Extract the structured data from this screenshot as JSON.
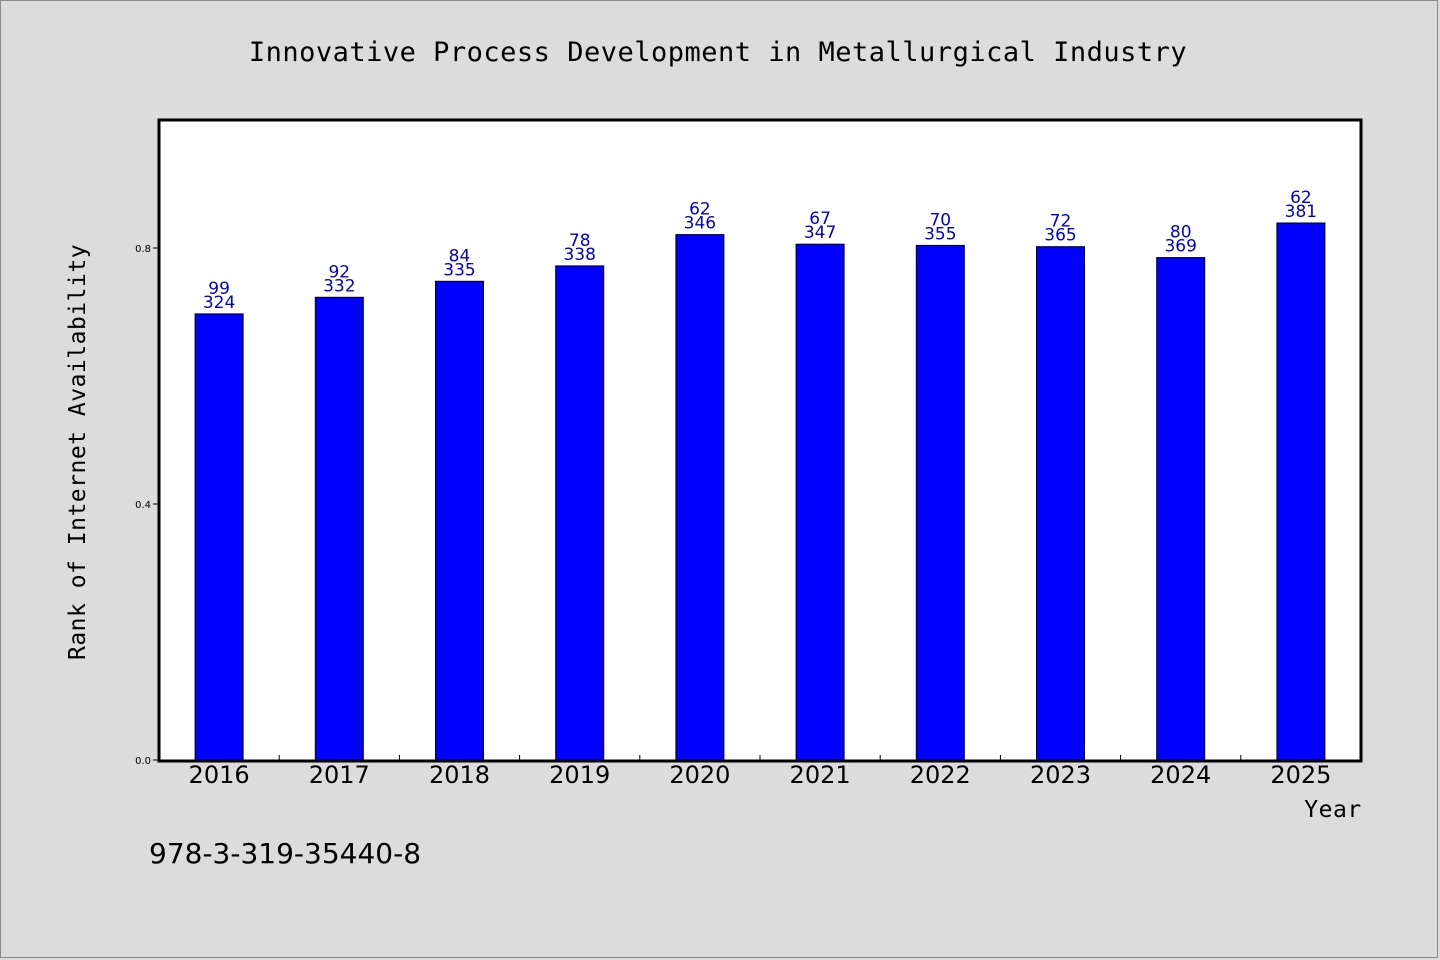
{
  "chart_data": {
    "type": "bar",
    "title": "Innovative Process Development in Metallurgical Industry",
    "xlabel": "Year",
    "ylabel": "Rank of Internet Availability",
    "categories": [
      "2016",
      "2017",
      "2018",
      "2019",
      "2020",
      "2021",
      "2022",
      "2023",
      "2024",
      "2025"
    ],
    "values": [
      0.697,
      0.723,
      0.748,
      0.772,
      0.821,
      0.806,
      0.804,
      0.802,
      0.785,
      0.839
    ],
    "labels_top": [
      "99",
      "92",
      "84",
      "78",
      "62",
      "67",
      "70",
      "72",
      "80",
      "62"
    ],
    "labels_bottom": [
      "324",
      "332",
      "335",
      "338",
      "346",
      "347",
      "355",
      "365",
      "369",
      "381"
    ],
    "yticks": [
      "0.0",
      "0.4",
      "0.8"
    ],
    "ytick_values": [
      0.0,
      0.4,
      0.8
    ],
    "ylim": [
      0.0,
      1.0
    ],
    "bar_color": "#0000ff",
    "label_color": "#0000cc",
    "grid": false
  },
  "footer": {
    "isbn": "978-3-319-35440-8"
  }
}
